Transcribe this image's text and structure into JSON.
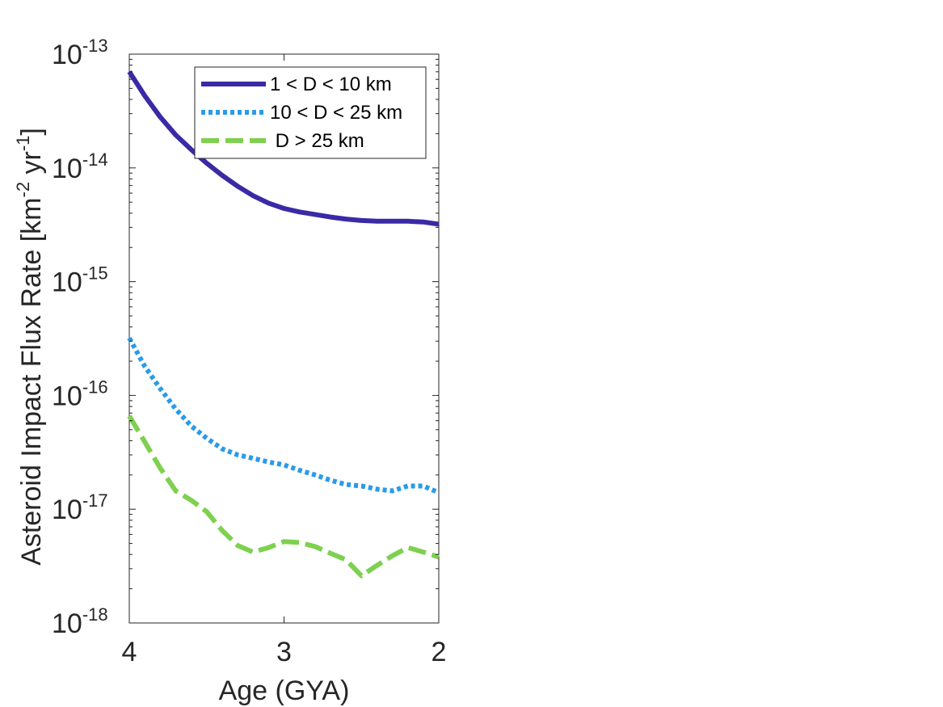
{
  "chart_data": {
    "type": "line",
    "xlabel": "Age (GYA)",
    "ylabel_parts": [
      "Asteroid Impact Flux Rate [km",
      "-2",
      " yr",
      "-1",
      "]"
    ],
    "xlim": [
      4,
      2
    ],
    "x_reversed": true,
    "ylim": [
      1e-18,
      1e-13
    ],
    "yscale": "log",
    "xticks": [
      4,
      3,
      2
    ],
    "xtick_labels": [
      "4",
      "3",
      "2"
    ],
    "yticks": [
      1e-18,
      1e-17,
      1e-16,
      1e-15,
      1e-14,
      1e-13
    ],
    "ytick_base": "10",
    "ytick_exponents": [
      "-18",
      "-17",
      "-16",
      "-15",
      "-14",
      "-13"
    ],
    "grid": false,
    "legend_position": "top-right",
    "x": [
      4.0,
      3.9,
      3.8,
      3.7,
      3.6,
      3.5,
      3.4,
      3.3,
      3.2,
      3.1,
      3.0,
      2.9,
      2.8,
      2.7,
      2.6,
      2.5,
      2.4,
      2.3,
      2.2,
      2.1,
      2.0
    ],
    "series": [
      {
        "name": "1 < D < 10 km",
        "color": "#3a2aa6",
        "style": "solid",
        "values": [
          7e-14,
          4.3e-14,
          2.8e-14,
          1.95e-14,
          1.45e-14,
          1.1e-14,
          8.6e-15,
          6.9e-15,
          5.7e-15,
          4.9e-15,
          4.4e-15,
          4.1e-15,
          3.9e-15,
          3.7e-15,
          3.55e-15,
          3.45e-15,
          3.4e-15,
          3.4e-15,
          3.4e-15,
          3.35e-15,
          3.2e-15
        ]
      },
      {
        "name": "10 < D < 25 km",
        "color": "#2a9be8",
        "style": "dotted",
        "values": [
          3.2e-16,
          1.8e-16,
          1.15e-16,
          7.6e-17,
          5.4e-17,
          4.2e-17,
          3.4e-17,
          3e-17,
          2.8e-17,
          2.6e-17,
          2.45e-17,
          2.2e-17,
          2e-17,
          1.8e-17,
          1.65e-17,
          1.6e-17,
          1.5e-17,
          1.45e-17,
          1.6e-17,
          1.6e-17,
          1.4e-17
        ]
      },
      {
        "name": " D > 25 km",
        "color": "#7ed04f",
        "style": "dashed",
        "values": [
          6.6e-17,
          3.9e-17,
          2.3e-17,
          1.45e-17,
          1.2e-17,
          9.5e-18,
          6.5e-18,
          4.8e-18,
          4.2e-18,
          4.6e-18,
          5.2e-18,
          5.1e-18,
          4.7e-18,
          4.1e-18,
          3.6e-18,
          2.6e-18,
          3.2e-18,
          3.9e-18,
          4.6e-18,
          4.2e-18,
          3.8e-18
        ]
      }
    ]
  }
}
